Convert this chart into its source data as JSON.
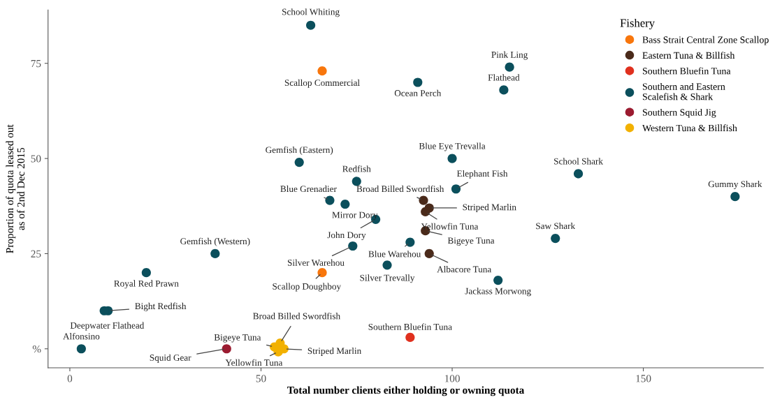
{
  "chart_data": {
    "type": "scatter",
    "xlabel": "Total number clients either holding or owning quota",
    "ylabel": "Proportion of quota leased out\nas of 2nd Dec 2015",
    "legend_title": "Fishery",
    "legend": "top right",
    "grid": false,
    "marker": "circle",
    "xlim": [
      -5.7,
      181.4
    ],
    "ylim": [
      -5,
      89
    ],
    "xticks": [
      0,
      50,
      100,
      150
    ],
    "yticks": [
      {
        "value": 0,
        "label": "%"
      },
      25,
      50,
      75
    ],
    "series": [
      {
        "name": "Bass Strait Central Zone Scallop",
        "color": "#f8760c",
        "x": [
          66,
          66
        ],
        "values": [
          73,
          20
        ]
      },
      {
        "name": "Eastern Tuna & Billfish",
        "color": "#4a2a1a",
        "x": [
          92.5,
          94,
          93,
          93,
          94
        ],
        "values": [
          39,
          37,
          36,
          31,
          25
        ]
      },
      {
        "name": "Southern Bluefin Tuna",
        "color": "#e0301e",
        "x": [
          89
        ],
        "values": [
          3
        ]
      },
      {
        "name": "Southern and Eastern\nScalefish & Shark",
        "color": "#0b4f5c",
        "x": [
          63,
          115,
          91,
          113.5,
          60,
          100,
          133,
          75,
          101,
          174,
          68,
          72,
          80,
          127,
          89,
          74,
          38,
          83,
          20,
          112,
          10,
          9,
          3
        ],
        "values": [
          85,
          74,
          70,
          68,
          49,
          50,
          46,
          44,
          42,
          40,
          39,
          38,
          34,
          29,
          28,
          27,
          25,
          22,
          20,
          18,
          10,
          10,
          0
        ]
      },
      {
        "name": "Southern Squid Jig",
        "color": "#9b1b30",
        "x": [
          41
        ],
        "values": [
          0
        ]
      },
      {
        "name": "Western Tuna & Billfish",
        "color": "#f2b100",
        "x": [
          55,
          53.5,
          56,
          54.5
        ],
        "values": [
          1.5,
          0.5,
          0,
          -0.8
        ]
      }
    ],
    "annotations": [
      {
        "text": "School Whiting",
        "x": 63,
        "y": 85
      },
      {
        "text": "Scallop Commercial",
        "x": 66,
        "y": 73
      },
      {
        "text": "Pink Ling",
        "x": 115,
        "y": 74
      },
      {
        "text": "Ocean Perch",
        "x": 91,
        "y": 70
      },
      {
        "text": "Flathead",
        "x": 113.5,
        "y": 68
      },
      {
        "text": "Gemfish (Eastern)",
        "x": 60,
        "y": 49
      },
      {
        "text": "Blue Eye Trevalla",
        "x": 100,
        "y": 50
      },
      {
        "text": "School Shark",
        "x": 133,
        "y": 46
      },
      {
        "text": "Redfish",
        "x": 75,
        "y": 44
      },
      {
        "text": "Elephant Fish",
        "x": 101,
        "y": 42
      },
      {
        "text": "Gummy Shark",
        "x": 174,
        "y": 40
      },
      {
        "text": "Blue Grenadier",
        "x": 68,
        "y": 39
      },
      {
        "text": "Mirror Dory",
        "x": 72,
        "y": 38
      },
      {
        "text": "Broad Billed Swordfish",
        "x": 92.5,
        "y": 39
      },
      {
        "text": "Striped Marlin",
        "x": 94,
        "y": 37
      },
      {
        "text": "Yellowfin Tuna",
        "x": 93,
        "y": 36
      },
      {
        "text": "John Dory",
        "x": 80,
        "y": 34
      },
      {
        "text": "Saw Shark",
        "x": 127,
        "y": 29
      },
      {
        "text": "Bigeye Tuna",
        "x": 93,
        "y": 31
      },
      {
        "text": "Blue Warehou",
        "x": 89,
        "y": 28
      },
      {
        "text": "Silver Warehou",
        "x": 74,
        "y": 27
      },
      {
        "text": "Albacore Tuna",
        "x": 94,
        "y": 25
      },
      {
        "text": "Gemfish (Western)",
        "x": 38,
        "y": 25
      },
      {
        "text": "Silver Trevally",
        "x": 83,
        "y": 22
      },
      {
        "text": "Royal Red Prawn",
        "x": 20,
        "y": 20
      },
      {
        "text": "Scallop Doughboy",
        "x": 66,
        "y": 20
      },
      {
        "text": "Jackass Morwong",
        "x": 112,
        "y": 18
      },
      {
        "text": "Bight Redfish",
        "x": 10,
        "y": 10
      },
      {
        "text": "Deepwater Flathead",
        "x": 9,
        "y": 10
      },
      {
        "text": "Southern Bluefin Tuna",
        "x": 89,
        "y": 3
      },
      {
        "text": "Alfonsino",
        "x": 3,
        "y": 0
      },
      {
        "text": "Squid Gear",
        "x": 41,
        "y": 0
      },
      {
        "text": "Broad Billed Swordfish",
        "x": 55,
        "y": 1.5
      },
      {
        "text": "Bigeye Tuna",
        "x": 53.5,
        "y": 0.5
      },
      {
        "text": "Striped Marlin",
        "x": 56,
        "y": 0
      },
      {
        "text": "Yellowfin Tuna",
        "x": 54.5,
        "y": -0.8
      }
    ]
  }
}
